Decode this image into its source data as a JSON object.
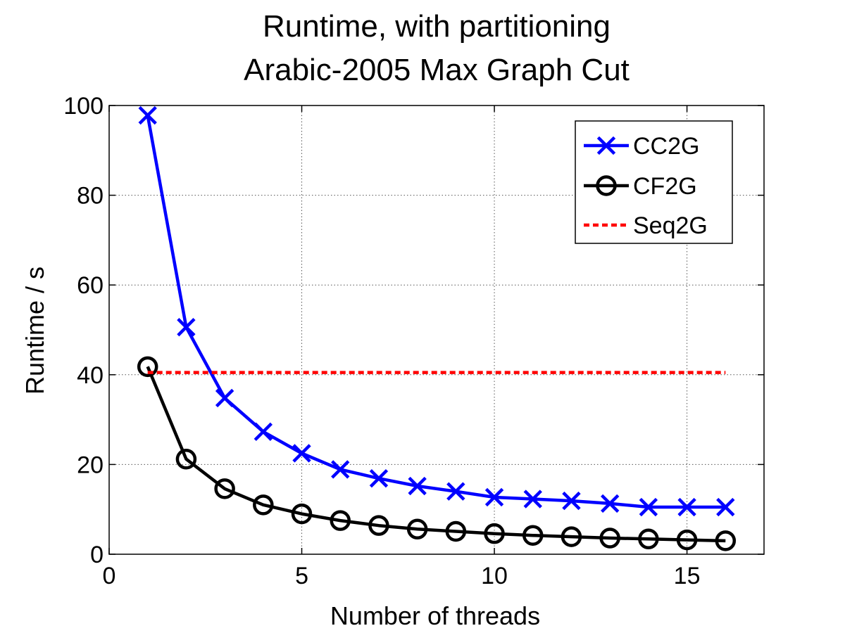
{
  "chart_data": {
    "type": "line",
    "title": [
      "Runtime, with partitioning",
      "Arabic-2005 Max Graph Cut"
    ],
    "xlabel": "Number of threads",
    "ylabel": "Runtime / s",
    "xlim": [
      0,
      17
    ],
    "ylim": [
      0,
      100
    ],
    "xticks": [
      0,
      5,
      10,
      15
    ],
    "yticks": [
      0,
      20,
      40,
      60,
      80,
      100
    ],
    "xtick_labels": [
      "0",
      "5",
      "10",
      "15"
    ],
    "ytick_labels": [
      "0",
      "20",
      "40",
      "60",
      "80",
      "100"
    ],
    "grid": true,
    "legend_position": "top-right",
    "series": [
      {
        "name": "CC2G",
        "color": "#0000ff",
        "marker": "x",
        "linestyle": "solid",
        "x": [
          1,
          2,
          3,
          4,
          5,
          6,
          7,
          8,
          9,
          10,
          11,
          12,
          13,
          14,
          15,
          16
        ],
        "y": [
          97.8,
          50.6,
          34.8,
          27.3,
          22.5,
          18.9,
          16.9,
          15.2,
          14.0,
          12.7,
          12.3,
          11.9,
          11.3,
          10.5,
          10.5,
          10.5
        ]
      },
      {
        "name": "CF2G",
        "color": "#000000",
        "marker": "o",
        "linestyle": "solid",
        "x": [
          1,
          2,
          3,
          4,
          5,
          6,
          7,
          8,
          9,
          10,
          11,
          12,
          13,
          14,
          15,
          16
        ],
        "y": [
          41.8,
          21.2,
          14.6,
          11.0,
          9.0,
          7.5,
          6.4,
          5.6,
          5.1,
          4.6,
          4.2,
          3.9,
          3.6,
          3.4,
          3.2,
          3.0
        ]
      },
      {
        "name": "Seq2G",
        "color": "#ff0000",
        "marker": "none",
        "linestyle": "dotted",
        "x": [
          1,
          16
        ],
        "y": [
          40.5,
          40.5
        ]
      }
    ]
  }
}
